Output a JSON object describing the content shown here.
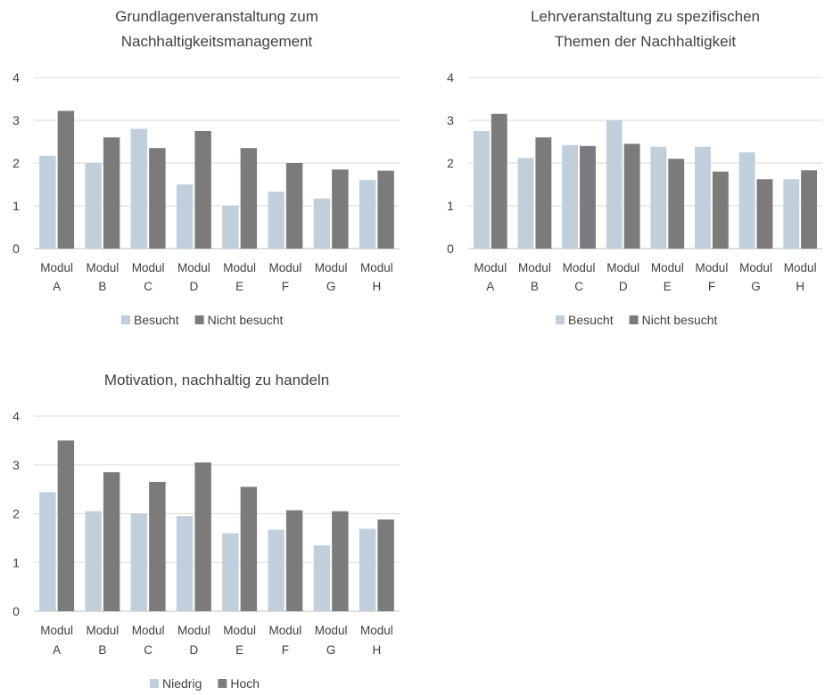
{
  "colors": {
    "light": "#c1cfdc",
    "dark": "#7b7b7b",
    "grid": "#d9d9d9",
    "text": "#404040"
  },
  "chart_data": [
    {
      "type": "bar",
      "title": [
        "Grundlagenveranstaltung zum",
        "Nachhaltigkeitsmanagement"
      ],
      "categories": [
        [
          "Modul",
          "A"
        ],
        [
          "Modul",
          "B"
        ],
        [
          "Modul",
          "C"
        ],
        [
          "Modul",
          "D"
        ],
        [
          "Modul",
          "E"
        ],
        [
          "Modul",
          "F"
        ],
        [
          "Modul",
          "G"
        ],
        [
          "Modul",
          "H"
        ]
      ],
      "ylim": [
        0,
        4
      ],
      "yticks": [
        "0",
        "1",
        "2",
        "3",
        "4"
      ],
      "grid": true,
      "legend_position": "bottom",
      "series": [
        {
          "name": "Besucht",
          "color": "#c1cfdc",
          "values": [
            2.17,
            2.0,
            2.8,
            1.5,
            1.0,
            1.33,
            1.17,
            1.6
          ]
        },
        {
          "name": "Nicht besucht",
          "color": "#7b7b7b",
          "values": [
            3.22,
            2.6,
            2.35,
            2.75,
            2.35,
            2.0,
            1.85,
            1.82
          ]
        }
      ]
    },
    {
      "type": "bar",
      "title": [
        "Lehrveranstaltung zu spezifischen",
        "Themen der Nachhaltigkeit"
      ],
      "categories": [
        [
          "Modul",
          "A"
        ],
        [
          "Modul",
          "B"
        ],
        [
          "Modul",
          "C"
        ],
        [
          "Modul",
          "D"
        ],
        [
          "Modul",
          "E"
        ],
        [
          "Modul",
          "F"
        ],
        [
          "Modul",
          "G"
        ],
        [
          "Modul",
          "H"
        ]
      ],
      "ylim": [
        0,
        4
      ],
      "yticks": [
        "0",
        "1",
        "2",
        "3",
        "4"
      ],
      "grid": true,
      "legend_position": "bottom",
      "series": [
        {
          "name": "Besucht",
          "color": "#c1cfdc",
          "values": [
            2.75,
            2.12,
            2.42,
            3.0,
            2.38,
            2.38,
            2.25,
            1.62
          ]
        },
        {
          "name": "Nicht besucht",
          "color": "#7b7b7b",
          "values": [
            3.15,
            2.6,
            2.4,
            2.45,
            2.1,
            1.8,
            1.62,
            1.83
          ]
        }
      ]
    },
    {
      "type": "bar",
      "title": [
        "Motivation, nachhaltig zu handeln"
      ],
      "categories": [
        [
          "Modul",
          "A"
        ],
        [
          "Modul",
          "B"
        ],
        [
          "Modul",
          "C"
        ],
        [
          "Modul",
          "D"
        ],
        [
          "Modul",
          "E"
        ],
        [
          "Modul",
          "F"
        ],
        [
          "Modul",
          "G"
        ],
        [
          "Modul",
          "H"
        ]
      ],
      "ylim": [
        0,
        4
      ],
      "yticks": [
        "0",
        "1",
        "2",
        "3",
        "4"
      ],
      "grid": true,
      "legend_position": "bottom",
      "series": [
        {
          "name": "Niedrig",
          "color": "#c1cfdc",
          "values": [
            2.44,
            2.05,
            2.0,
            1.95,
            1.6,
            1.67,
            1.35,
            1.69
          ]
        },
        {
          "name": "Hoch",
          "color": "#7b7b7b",
          "values": [
            3.5,
            2.85,
            2.65,
            3.05,
            2.55,
            2.07,
            2.05,
            1.88
          ]
        }
      ]
    }
  ]
}
